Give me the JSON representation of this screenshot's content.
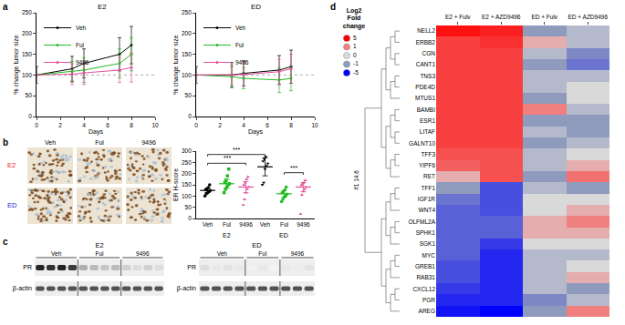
{
  "panel_labels": [
    "a",
    "b",
    "c",
    "d"
  ],
  "chart_data": [
    {
      "type": "line",
      "title": "E2",
      "x_label": "Days",
      "y_label": "% change tumor size",
      "xlim": [
        0,
        10
      ],
      "xticks": [
        0,
        2,
        4,
        6,
        8,
        10
      ],
      "ylim": [
        0,
        250
      ],
      "yticks": [
        0,
        50,
        100,
        150,
        200,
        250
      ],
      "reference_line": 100,
      "legend": "top left",
      "x": [
        0,
        3,
        4,
        7,
        8
      ],
      "series": [
        {
          "name": "Veh",
          "color": "#000000",
          "values": [
            100,
            115,
            128,
            150,
            172
          ],
          "error": [
            20,
            30,
            35,
            40,
            45
          ]
        },
        {
          "name": "Ful",
          "color": "#22bb22",
          "values": [
            100,
            108,
            112,
            128,
            150
          ],
          "error": [
            20,
            25,
            30,
            35,
            40
          ]
        },
        {
          "name": "9496",
          "color": "#e0509a",
          "values": [
            100,
            102,
            105,
            112,
            118
          ],
          "error": [
            20,
            25,
            28,
            30,
            35
          ]
        }
      ]
    },
    {
      "type": "line",
      "title": "ED",
      "x_label": "Days",
      "y_label": "% change tumor size",
      "xlim": [
        0,
        10
      ],
      "xticks": [
        0,
        2,
        4,
        6,
        8,
        10
      ],
      "ylim": [
        0,
        250
      ],
      "yticks": [
        0,
        50,
        100,
        150,
        200,
        250
      ],
      "reference_line": 100,
      "legend": "top left",
      "x": [
        0,
        3,
        4,
        7,
        8
      ],
      "series": [
        {
          "name": "Veh",
          "color": "#000000",
          "values": [
            100,
            100,
            104,
            112,
            120
          ],
          "error": [
            20,
            30,
            30,
            35,
            40
          ]
        },
        {
          "name": "Ful",
          "color": "#22bb22",
          "values": [
            100,
            96,
            92,
            88,
            92
          ],
          "error": [
            20,
            25,
            25,
            30,
            30
          ]
        },
        {
          "name": "9496",
          "color": "#e0509a",
          "values": [
            100,
            100,
            101,
            108,
            115
          ],
          "error": [
            20,
            25,
            28,
            30,
            35
          ]
        }
      ]
    },
    {
      "type": "scatter",
      "y_label": "ER H-score",
      "categories": [
        "Veh",
        "Ful",
        "9496",
        "Veh",
        "Ful",
        "9496"
      ],
      "groups": [
        "E2",
        "E2",
        "E2",
        "ED",
        "ED",
        "ED"
      ],
      "ylim": [
        0,
        300
      ],
      "yticks": [
        0,
        50,
        100,
        150,
        200,
        250,
        300
      ],
      "points": [
        {
          "color": "#000000",
          "marker": "circle",
          "values": [
            100,
            110,
            115,
            120,
            125,
            128,
            132,
            138,
            150
          ],
          "mean": 125,
          "error": 10
        },
        {
          "color": "#22bb22",
          "marker": "square",
          "values": [
            115,
            130,
            140,
            150,
            155,
            160,
            170,
            190,
            220
          ],
          "mean": 155,
          "error": 20
        },
        {
          "color": "#e0509a",
          "marker": "triangle-up",
          "values": [
            60,
            85,
            115,
            130,
            140,
            150,
            160,
            175,
            185
          ],
          "mean": 140,
          "error": 25
        },
        {
          "color": "#000000",
          "marker": "triangle-down",
          "values": [
            150,
            160,
            220,
            235,
            245,
            255,
            265,
            275
          ],
          "mean": 230,
          "error": 40
        },
        {
          "color": "#22bb22",
          "marker": "circle",
          "values": [
            75,
            85,
            95,
            100,
            108,
            115,
            120,
            128,
            140
          ],
          "mean": 110,
          "error": 15
        },
        {
          "color": "#e0509a",
          "marker": "triangle-up",
          "values": [
            20,
            105,
            120,
            130,
            140,
            148,
            155,
            160,
            170
          ],
          "mean": 140,
          "error": 20
        }
      ],
      "comparisons": [
        {
          "between": [
            0,
            3
          ],
          "label": "***"
        },
        {
          "between": [
            0,
            2
          ],
          "label": "***"
        },
        {
          "between": [
            4,
            5
          ],
          "label": "***"
        }
      ]
    },
    {
      "type": "heatmap",
      "legend_title": [
        "Log2",
        "Fold",
        "change"
      ],
      "legend_values": [
        5,
        1,
        0,
        -1,
        -5
      ],
      "zlim": [
        -5,
        5
      ],
      "cluster_label": "#1 14.6",
      "columns": [
        "E2 + Fulv",
        "E2 + AZD9496",
        "ED + Fulv",
        "ED + AZD9496"
      ],
      "rows": [
        "NELL2",
        "ERBB2",
        "CGN",
        "CANT1",
        "TNS3",
        "PDE4D",
        "MTUS1",
        "BAMBI",
        "ESR1",
        "LITAF",
        "GALNT10",
        "TFF3",
        "YIPF6",
        "RET",
        "TFF1",
        "IGF1R",
        "WNT4",
        "OLFML2A",
        "SPHK1",
        "SGK1",
        "MYC",
        "GREB1",
        "RAB31",
        "CXCL12",
        "PGR",
        "AREG"
      ],
      "cells": [
        [
          4.5,
          4,
          -1,
          -0.5
        ],
        [
          3,
          3.5,
          0.5,
          -0.5
        ],
        [
          3,
          3,
          -0.5,
          -1.5
        ],
        [
          3,
          3,
          -1,
          -2
        ],
        [
          3,
          3,
          -0.5,
          -0.5
        ],
        [
          3,
          3,
          -0.5,
          0
        ],
        [
          3,
          3,
          -1,
          0
        ],
        [
          3,
          3,
          1,
          -0.5
        ],
        [
          3,
          3,
          -1,
          -1
        ],
        [
          3,
          3,
          -0.5,
          -1
        ],
        [
          3,
          3,
          -1,
          -0.5
        ],
        [
          2.5,
          2.5,
          -0.5,
          0
        ],
        [
          2,
          2.5,
          -0.5,
          0.5
        ],
        [
          0.5,
          2.5,
          -1,
          1.5
        ],
        [
          -1,
          -3,
          -0.5,
          -1
        ],
        [
          -2,
          -3,
          0,
          0
        ],
        [
          -2.5,
          -3,
          0,
          0.5
        ],
        [
          -2.5,
          -2.5,
          0.5,
          1
        ],
        [
          -2.5,
          -2.5,
          0.5,
          0.5
        ],
        [
          -2.5,
          -3.5,
          0,
          0
        ],
        [
          -2.5,
          -4,
          -0.5,
          -0.5
        ],
        [
          -3,
          -4,
          -0.5,
          0
        ],
        [
          -3,
          -4,
          -0.5,
          0.5
        ],
        [
          -3.5,
          -4,
          -0.5,
          -1
        ],
        [
          -4,
          -4,
          -1.5,
          -0.5
        ],
        [
          -4.5,
          -5,
          -1,
          1
        ]
      ]
    }
  ],
  "ihc_images": {
    "columns": [
      "Veh",
      "Ful",
      "9496"
    ],
    "rows": [
      {
        "label": "E2",
        "color": "#e8202a"
      },
      {
        "label": "ED",
        "color": "#2020c8"
      }
    ]
  },
  "western_blots": [
    {
      "title": "E2",
      "groups": [
        "Veh",
        "Ful",
        "9496"
      ],
      "lanes": [
        4,
        4,
        4
      ],
      "rows": [
        "PR",
        "β-actin"
      ],
      "pr_intensity": [
        0.95,
        0.9,
        0.95,
        0.85,
        0.35,
        0.3,
        0.25,
        0.3,
        0.2,
        0.15,
        0.2,
        0.15
      ]
    },
    {
      "title": "ED",
      "groups": [
        "Veh",
        "Ful",
        "9496"
      ],
      "lanes": [
        4,
        3,
        3
      ],
      "rows": [
        "PR",
        "β-actin"
      ],
      "pr_intensity": [
        0.15,
        0.1,
        0.12,
        0.1,
        0.06,
        0.1,
        0.05,
        0.1,
        0.08,
        0.12
      ]
    }
  ]
}
